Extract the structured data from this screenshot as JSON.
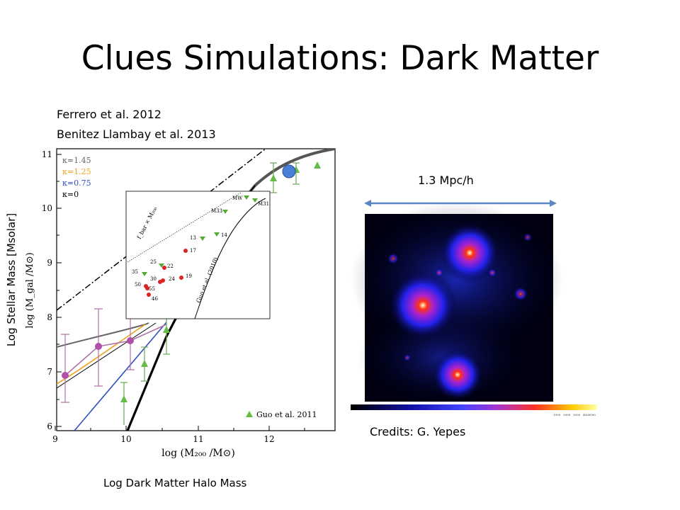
{
  "slide": {
    "title": "Clues Simulations: Dark Matter",
    "references": [
      "Ferrero et al. 2012",
      "Benitez Llambay et al. 2013"
    ],
    "y_axis_caption": "Log Stellar Mass [Msolar]",
    "x_axis_caption": "Log Dark Matter Halo Mass",
    "scale_label": "1.3 Mpc/h",
    "credits": "Credits: G. Yepes"
  },
  "plot": {
    "y_ticks": [
      "11",
      "10",
      "9",
      "8",
      "7",
      "6"
    ],
    "x_ticks": [
      "9",
      "10",
      "11",
      "12"
    ],
    "x_axis_label": "log (M₂₀₀ /M⊙)",
    "y_axis_label": "log (M_gal /M⊙)",
    "legend": [
      {
        "label": "κ=1.45",
        "color": "#666666"
      },
      {
        "label": "κ=1.25",
        "color": "#f0a020"
      },
      {
        "label": "κ=0.75",
        "color": "#3050c0"
      },
      {
        "label": "κ=0",
        "color": "#000000"
      }
    ],
    "guo_legend": "Guo et al. 2011",
    "inset_labels": {
      "fbar": "f_bar × M₂₀₀",
      "guo2010": "Guo et al. (2010)",
      "mw": "MW",
      "m33": "M33",
      "m31": "M31",
      "n13": "13",
      "n14": "14",
      "n17": "17",
      "n25": "25",
      "n22": "22",
      "n35": "35",
      "n30": "30",
      "n24": "24",
      "n19": "19",
      "n50": "50",
      "n55": "55",
      "n46": "46"
    }
  },
  "colorbar": {
    "tick_labels": [
      "1000",
      "2000",
      "3000",
      "4000000"
    ]
  },
  "colors": {
    "scale_arrow": "#5b86c5",
    "highlight_point": "#4a7fd8"
  }
}
